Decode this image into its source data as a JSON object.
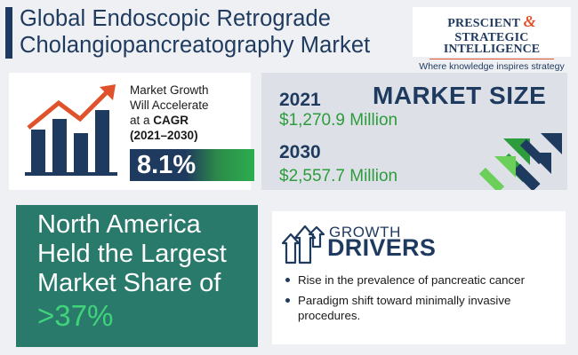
{
  "header": {
    "title_line1": "Global Endoscopic Retrograde",
    "title_line2": "Cholangiopancreatography Market"
  },
  "logo": {
    "line1_left": "PRESCIENT",
    "ampersand": "&",
    "line1_right": "STRATEGIC",
    "line2": "INTELLIGENCE",
    "tagline": "Where knowledge inspires strategy"
  },
  "growth": {
    "line1": "Market Growth",
    "line2": "Will Accelerate",
    "line3_prefix": "at a",
    "line3_bold": "CAGR",
    "line4": "(2021–2030)",
    "cagr_value": "8.1%"
  },
  "market_size": {
    "title": "MARKET SIZE",
    "year1": "2021",
    "value1": "$1,270.9 Million",
    "year2": "2030",
    "value2": "$2,557.7 Million"
  },
  "regional": {
    "line1": "North America",
    "line2": "Held the Largest",
    "line3": "Market Share of",
    "value": ">37%"
  },
  "drivers": {
    "heading_small": "GROWTH",
    "heading_large": "DRIVERS",
    "items": [
      "Rise in the prevalence of pancreatic cancer",
      "Paradigm shift toward minimally invasive procedures."
    ]
  },
  "colors": {
    "navy": "#1f3a5f",
    "green": "#2c9c3c",
    "orange_accent": "#e0522b",
    "teal_panel": "#2a7a6c",
    "bright_green": "#3fd47a"
  }
}
